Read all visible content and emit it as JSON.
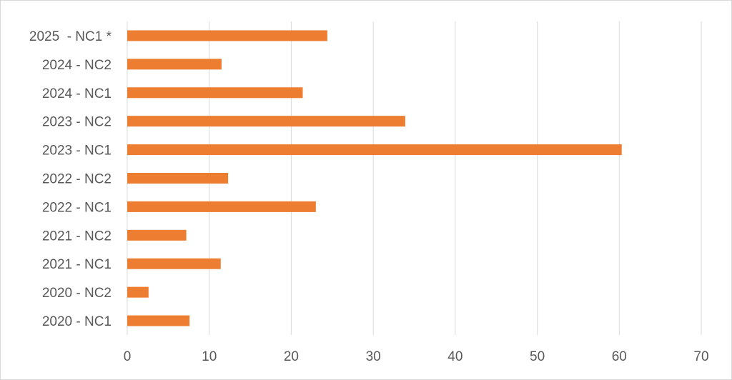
{
  "chart_data": {
    "type": "bar",
    "orientation": "horizontal",
    "categories": [
      "2020 - NC1",
      "2020 - NC2",
      "2021 - NC1",
      "2021 - NC2",
      "2022 - NC1",
      "2022 - NC2",
      "2023 - NC1",
      "2023 - NC2",
      "2024 - NC1",
      "2024 - NC2",
      "2025  - NC1 *"
    ],
    "values": [
      7.6,
      2.6,
      11.4,
      7.2,
      23.0,
      12.3,
      60.3,
      33.9,
      21.4,
      11.5,
      24.4
    ],
    "xlim": [
      0,
      70
    ],
    "xticks": [
      "0",
      "10",
      "20",
      "30",
      "40",
      "50",
      "60",
      "70"
    ],
    "xlabel": "",
    "ylabel": "",
    "title": "",
    "grid": "vertical",
    "legend": "none",
    "bar_color": "#ED7D31",
    "grid_color": "#D9D9D9",
    "label_color": "#595959"
  }
}
